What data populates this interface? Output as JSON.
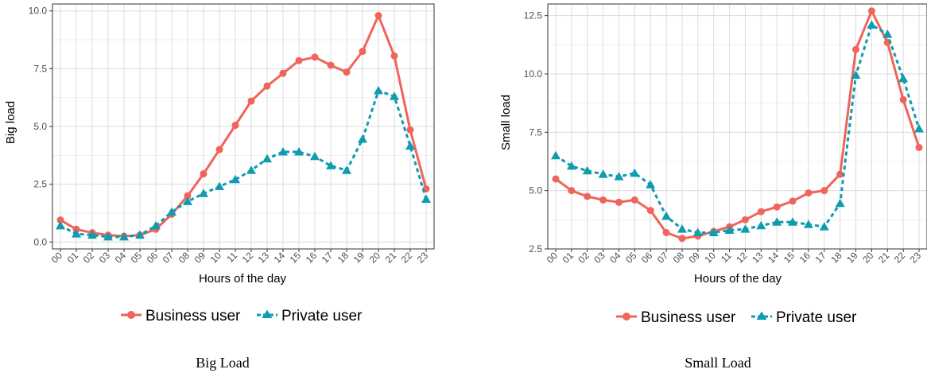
{
  "colors": {
    "business": "#f0645a",
    "private": "#0f9bb0"
  },
  "chart_data": [
    {
      "type": "line",
      "caption": "Big Load",
      "xlabel": "Hours of the day",
      "ylabel": "Big load",
      "ylim": [
        -0.3,
        10.3
      ],
      "yticks": [
        "0.0",
        "2.5",
        "5.0",
        "7.5",
        "10.0"
      ],
      "categories": [
        "00",
        "01",
        "02",
        "03",
        "04",
        "05",
        "06",
        "07",
        "08",
        "09",
        "10",
        "11",
        "12",
        "13",
        "14",
        "15",
        "16",
        "17",
        "18",
        "19",
        "20",
        "21",
        "22",
        "23"
      ],
      "series": [
        {
          "name": "Business user",
          "values": [
            0.95,
            0.55,
            0.4,
            0.3,
            0.25,
            0.3,
            0.55,
            1.2,
            2.0,
            2.95,
            4.0,
            5.05,
            6.1,
            6.75,
            7.3,
            7.85,
            8.0,
            7.65,
            7.35,
            8.25,
            9.8,
            8.05,
            4.85,
            2.3
          ]
        },
        {
          "name": "Private user",
          "values": [
            0.7,
            0.35,
            0.3,
            0.22,
            0.22,
            0.3,
            0.7,
            1.3,
            1.75,
            2.1,
            2.4,
            2.7,
            3.1,
            3.6,
            3.9,
            3.9,
            3.7,
            3.3,
            3.1,
            4.45,
            6.55,
            6.3,
            4.15,
            1.85
          ]
        }
      ],
      "legend": "bottom"
    },
    {
      "type": "line",
      "caption": "Small Load",
      "xlabel": "Hours of the day",
      "ylabel": "Small load",
      "ylim": [
        2.5,
        13.0
      ],
      "yticks": [
        "2.5",
        "5.0",
        "7.5",
        "10.0",
        "12.5"
      ],
      "categories": [
        "00",
        "01",
        "02",
        "03",
        "04",
        "05",
        "06",
        "07",
        "08",
        "09",
        "10",
        "11",
        "12",
        "13",
        "14",
        "15",
        "16",
        "17",
        "18",
        "19",
        "20",
        "21",
        "22",
        "23"
      ],
      "series": [
        {
          "name": "Business user",
          "values": [
            5.5,
            5.0,
            4.75,
            4.6,
            4.5,
            4.6,
            4.15,
            3.2,
            2.95,
            3.05,
            3.25,
            3.45,
            3.75,
            4.1,
            4.3,
            4.55,
            4.9,
            5.0,
            5.7,
            11.05,
            12.7,
            11.35,
            8.9,
            6.85
          ]
        },
        {
          "name": "Private user",
          "values": [
            6.5,
            6.05,
            5.85,
            5.7,
            5.6,
            5.75,
            5.25,
            3.9,
            3.35,
            3.2,
            3.2,
            3.3,
            3.35,
            3.5,
            3.65,
            3.65,
            3.55,
            3.45,
            4.45,
            9.95,
            12.1,
            11.7,
            9.8,
            7.65
          ]
        }
      ],
      "legend": "bottom"
    }
  ]
}
